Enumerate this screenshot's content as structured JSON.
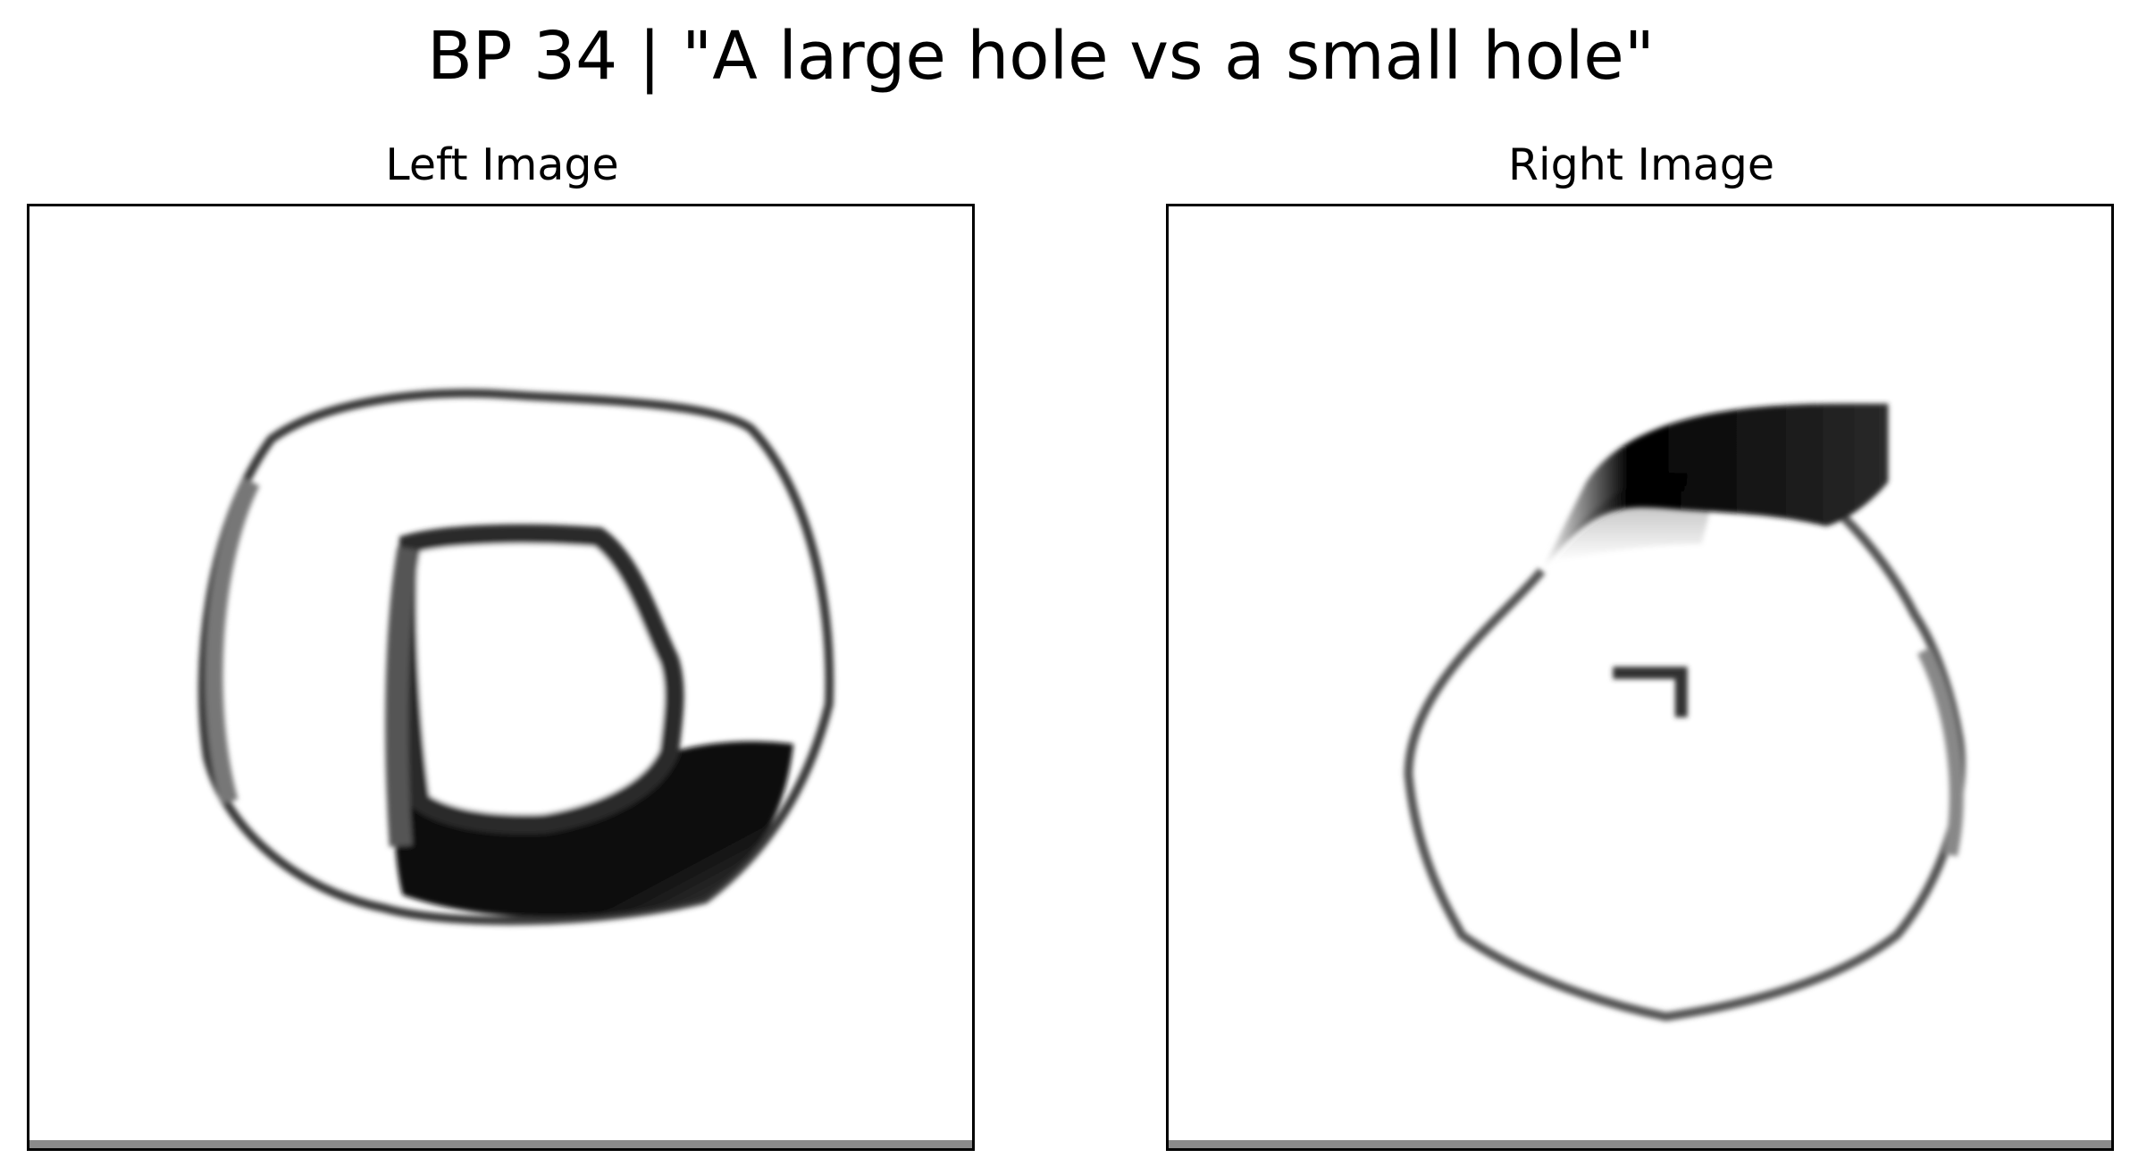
{
  "figure": {
    "title": "BP 34 | \"A large hole vs a small hole\""
  },
  "panels": {
    "left": {
      "title": "Left Image",
      "content": "large-hole-shape"
    },
    "right": {
      "title": "Right Image",
      "content": "small-hole-shape"
    }
  },
  "colors": {
    "background": "#ffffff",
    "ink": "#000000",
    "frame": "#000000"
  }
}
